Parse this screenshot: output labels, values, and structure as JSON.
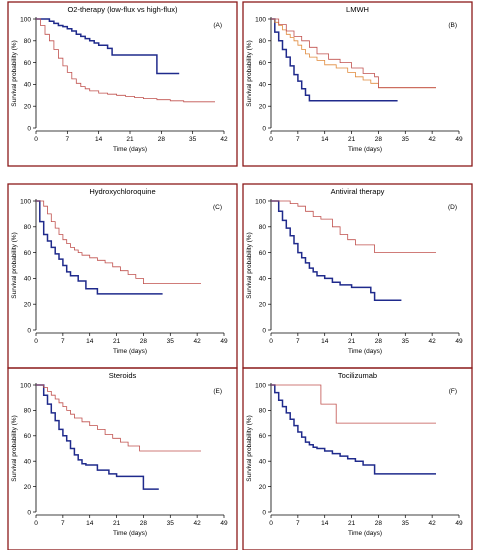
{
  "figure": {
    "xlabel": "Time (days)",
    "ylabel": "Survival probability (%)",
    "frame_color": "#8b1a1a",
    "colors": {
      "dark_blue": "#1f2a8c",
      "red": "#c0504d",
      "orange": "#e08a3c"
    }
  },
  "chart_data": [
    {
      "type": "line",
      "title": "O2-therapy (low-flux vs high-flux)",
      "panel_label": "(A)",
      "xticks": [
        "0",
        "7",
        "14",
        "21",
        "28",
        "35",
        "42"
      ],
      "yticks": [
        "0",
        "20",
        "40",
        "60",
        "80",
        "100"
      ],
      "xlim": [
        0,
        42
      ],
      "ylim": [
        0,
        100
      ],
      "grid": false,
      "series": [
        {
          "color": "#1f2a8c",
          "weight": "bold",
          "x": [
            0,
            2,
            3,
            4,
            5,
            6,
            7,
            8,
            9,
            10,
            11,
            12,
            13,
            14,
            16,
            17,
            27,
            32
          ],
          "y": [
            100,
            100,
            98,
            96,
            94,
            93,
            91,
            89,
            86,
            84,
            82,
            80,
            78,
            76,
            73,
            67,
            50,
            50
          ]
        },
        {
          "color": "#c0504d",
          "weight": "thin",
          "x": [
            0,
            1,
            2,
            3,
            4,
            5,
            6,
            7,
            8,
            9,
            10,
            11,
            12,
            14,
            16,
            18,
            20,
            22,
            24,
            27,
            30,
            33,
            36,
            40
          ],
          "y": [
            100,
            94,
            86,
            80,
            72,
            64,
            57,
            51,
            45,
            41,
            38,
            36,
            34,
            32,
            31,
            30,
            29,
            28,
            27,
            26,
            25,
            24,
            24,
            24
          ]
        }
      ]
    },
    {
      "type": "line",
      "title": "LMWH",
      "panel_label": "(B)",
      "xticks": [
        "0",
        "7",
        "14",
        "21",
        "28",
        "35",
        "42",
        "49"
      ],
      "yticks": [
        "0",
        "20",
        "40",
        "60",
        "80",
        "100"
      ],
      "xlim": [
        0,
        49
      ],
      "ylim": [
        0,
        100
      ],
      "grid": false,
      "series": [
        {
          "color": "#1f2a8c",
          "weight": "bold",
          "x": [
            0,
            1,
            2,
            3,
            4,
            5,
            6,
            7,
            8,
            9,
            10,
            12,
            14,
            20,
            33
          ],
          "y": [
            100,
            88,
            80,
            72,
            65,
            57,
            49,
            43,
            36,
            30,
            25,
            25,
            25,
            25,
            25
          ]
        },
        {
          "color": "#e08a3c",
          "weight": "thin",
          "x": [
            0,
            1,
            2,
            3,
            4,
            5,
            6,
            7,
            8,
            9,
            10,
            12,
            14,
            17,
            20,
            22,
            24,
            26,
            28,
            35,
            43
          ],
          "y": [
            100,
            97,
            94,
            90,
            86,
            83,
            80,
            76,
            72,
            68,
            65,
            62,
            58,
            55,
            51,
            47,
            44,
            41,
            37,
            37,
            37
          ]
        },
        {
          "color": "#c0504d",
          "weight": "thin",
          "x": [
            0,
            2,
            4,
            6,
            8,
            10,
            12,
            15,
            18,
            21,
            24,
            27,
            28,
            36,
            43
          ],
          "y": [
            100,
            95,
            89,
            84,
            80,
            74,
            68,
            63,
            60,
            55,
            50,
            47,
            37,
            37,
            37
          ]
        }
      ]
    },
    {
      "type": "line",
      "title": "Hydroxychloroquine",
      "panel_label": "(C)",
      "xticks": [
        "0",
        "7",
        "14",
        "21",
        "28",
        "35",
        "42",
        "49"
      ],
      "yticks": [
        "0",
        "20",
        "40",
        "60",
        "80",
        "100"
      ],
      "xlim": [
        0,
        49
      ],
      "ylim": [
        0,
        100
      ],
      "grid": false,
      "series": [
        {
          "color": "#1f2a8c",
          "weight": "bold",
          "x": [
            0,
            1,
            2,
            3,
            4,
            5,
            6,
            7,
            8,
            9,
            11,
            13,
            16,
            24,
            33
          ],
          "y": [
            100,
            84,
            74,
            69,
            64,
            59,
            55,
            50,
            45,
            42,
            38,
            32,
            28,
            28,
            28
          ]
        },
        {
          "color": "#c0504d",
          "weight": "thin",
          "x": [
            0,
            2,
            3,
            4,
            5,
            6,
            7,
            8,
            9,
            10,
            11,
            12,
            14,
            16,
            18,
            20,
            22,
            24,
            26,
            28,
            35,
            43
          ],
          "y": [
            100,
            96,
            90,
            84,
            79,
            74,
            70,
            67,
            64,
            62,
            60,
            58,
            56,
            54,
            52,
            49,
            46,
            43,
            40,
            36,
            36,
            36
          ]
        }
      ]
    },
    {
      "type": "line",
      "title": "Antiviral therapy",
      "panel_label": "(D)",
      "xticks": [
        "0",
        "7",
        "14",
        "21",
        "28",
        "35",
        "42",
        "49"
      ],
      "yticks": [
        "0",
        "20",
        "40",
        "60",
        "80",
        "100"
      ],
      "xlim": [
        0,
        49
      ],
      "ylim": [
        0,
        100
      ],
      "grid": false,
      "series": [
        {
          "color": "#1f2a8c",
          "weight": "bold",
          "x": [
            0,
            2,
            3,
            4,
            5,
            6,
            7,
            8,
            9,
            10,
            11,
            12,
            14,
            16,
            18,
            21,
            26,
            27,
            34
          ],
          "y": [
            100,
            92,
            85,
            79,
            73,
            67,
            60,
            56,
            52,
            48,
            45,
            42,
            40,
            37,
            35,
            33,
            29,
            23,
            23
          ]
        },
        {
          "color": "#c0504d",
          "weight": "thin",
          "x": [
            0,
            5,
            7,
            9,
            11,
            13,
            16,
            18,
            20,
            22,
            27,
            35,
            43
          ],
          "y": [
            100,
            98,
            96,
            92,
            88,
            86,
            80,
            74,
            70,
            66,
            60,
            60,
            60
          ]
        }
      ]
    },
    {
      "type": "line",
      "title": "Steroids",
      "panel_label": "(E)",
      "xticks": [
        "0",
        "7",
        "14",
        "21",
        "28",
        "35",
        "42",
        "49"
      ],
      "yticks": [
        "0",
        "20",
        "40",
        "60",
        "80",
        "100"
      ],
      "xlim": [
        0,
        49
      ],
      "ylim": [
        0,
        100
      ],
      "grid": false,
      "series": [
        {
          "color": "#1f2a8c",
          "weight": "bold",
          "x": [
            0,
            2,
            3,
            4,
            5,
            6,
            7,
            8,
            9,
            10,
            11,
            12,
            13,
            16,
            19,
            21,
            28,
            32
          ],
          "y": [
            100,
            92,
            85,
            78,
            72,
            65,
            60,
            56,
            50,
            45,
            41,
            38,
            37,
            33,
            30,
            28,
            18,
            18
          ]
        },
        {
          "color": "#c0504d",
          "weight": "thin",
          "x": [
            0,
            2,
            3,
            4,
            5,
            6,
            7,
            8,
            9,
            10,
            12,
            14,
            16,
            18,
            20,
            22,
            24,
            27,
            35,
            43
          ],
          "y": [
            100,
            98,
            95,
            92,
            89,
            86,
            83,
            80,
            77,
            74,
            71,
            68,
            65,
            61,
            58,
            55,
            52,
            48,
            48,
            48
          ]
        }
      ]
    },
    {
      "type": "line",
      "title": "Tocilizumab",
      "panel_label": "(F)",
      "xticks": [
        "0",
        "7",
        "14",
        "21",
        "28",
        "35",
        "42",
        "49"
      ],
      "yticks": [
        "0",
        "20",
        "40",
        "60",
        "80",
        "100"
      ],
      "xlim": [
        0,
        49
      ],
      "ylim": [
        0,
        100
      ],
      "grid": false,
      "series": [
        {
          "color": "#1f2a8c",
          "weight": "bold",
          "x": [
            0,
            1,
            2,
            3,
            4,
            5,
            6,
            7,
            8,
            9,
            10,
            11,
            12,
            14,
            16,
            18,
            20,
            22,
            24,
            27,
            35,
            43
          ],
          "y": [
            100,
            94,
            88,
            83,
            78,
            73,
            68,
            63,
            59,
            55,
            53,
            51,
            50,
            48,
            46,
            44,
            42,
            40,
            37,
            30,
            30,
            30
          ]
        },
        {
          "color": "#c0504d",
          "weight": "thin",
          "x": [
            0,
            10,
            13,
            14,
            17,
            35,
            43
          ],
          "y": [
            100,
            100,
            85,
            85,
            70,
            70,
            70
          ]
        }
      ]
    }
  ]
}
